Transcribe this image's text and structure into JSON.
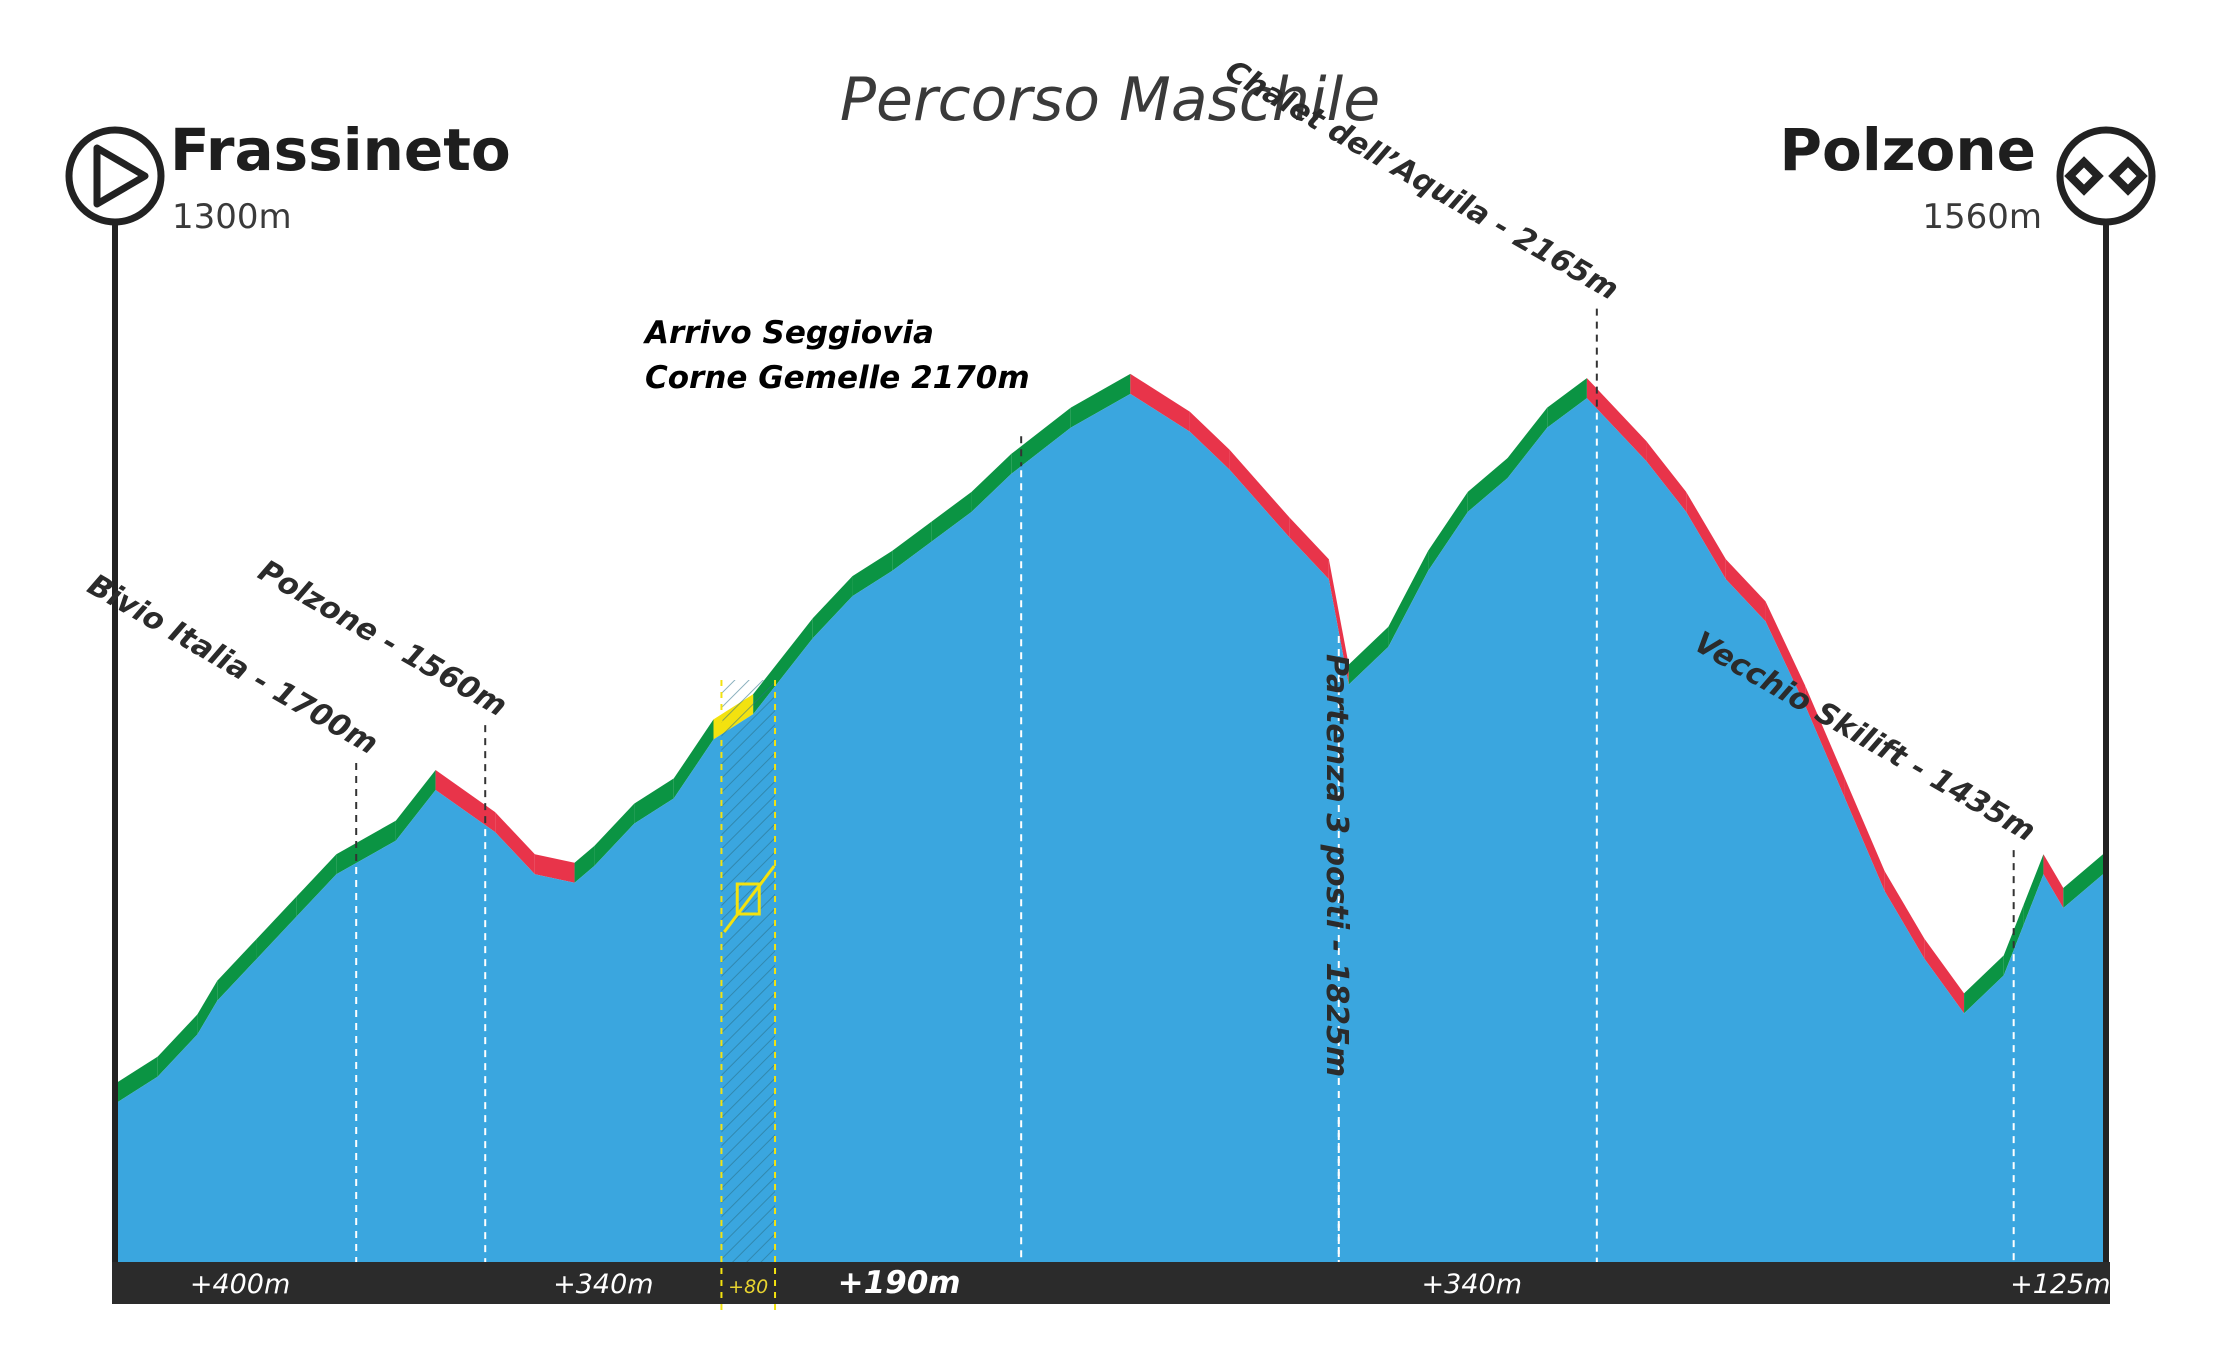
{
  "chart_data": {
    "type": "area",
    "title": "Percorso Maschile",
    "start": {
      "name": "Frassineto",
      "elevation": "1300m"
    },
    "finish": {
      "name": "Polzone",
      "elevation": "1560m"
    },
    "series": [
      {
        "x": [
          0,
          2,
          4,
          5,
          7,
          9,
          11,
          14,
          16,
          19,
          21,
          23,
          24,
          26,
          28,
          30,
          32,
          35,
          37,
          39,
          41,
          43,
          45,
          48,
          51,
          54,
          56,
          59,
          61,
          62,
          64,
          66,
          68,
          70,
          72,
          74,
          77,
          79,
          81,
          83,
          85,
          87,
          89,
          91,
          93,
          95,
          96,
          97,
          98,
          100
        ],
        "y": [
          1330,
          1360,
          1410,
          1450,
          1500,
          1550,
          1600,
          1640,
          1700,
          1650,
          1600,
          1590,
          1610,
          1660,
          1690,
          1760,
          1790,
          1880,
          1930,
          1960,
          1995,
          2030,
          2075,
          2130,
          2170,
          2125,
          2080,
          2000,
          1950,
          1825,
          1870,
          1960,
          2030,
          2070,
          2130,
          2165,
          2090,
          2030,
          1950,
          1900,
          1800,
          1690,
          1580,
          1500,
          1435,
          1480,
          1540,
          1600,
          1560,
          1600
        ]
      }
    ],
    "markers": [
      {
        "x": 12,
        "label": "Bivio Italia - 1700m"
      },
      {
        "x": 18.5,
        "label": "Polzone - 1560m"
      },
      {
        "x": 45.5,
        "label": "Arrivo Seggiovia",
        "label2": "Corne Gemelle 2170m"
      },
      {
        "x": 61.5,
        "label": "Partenza 3 posti - 1825m"
      },
      {
        "x": 74.5,
        "label": "Chalet dell’Aquila - 2165m"
      },
      {
        "x": 95.5,
        "label": "Vecchio Skilift - 1435m"
      }
    ],
    "segments": [
      {
        "label": "+400m",
        "from": 0,
        "to": 12.3
      },
      {
        "label": "+340m",
        "from": 18.5,
        "to": 30.4
      },
      {
        "label": "+80",
        "from": 30.4,
        "to": 33.1
      },
      {
        "label": "+190m",
        "from": 33.1,
        "to": 45.6
      },
      {
        "label": "+340m",
        "from": 61.6,
        "to": 74.8
      },
      {
        "label": "+125m",
        "from": 95.7,
        "to": 100
      }
    ],
    "colors": {
      "fill": "#3aa6df",
      "ascent": "#0b9443",
      "descent": "#e8344a",
      "lift": "#f3e20f",
      "bar": "#2b2b2b",
      "line": "#222222"
    },
    "icons": [
      "start-play-icon",
      "finish-flag-icon",
      "no-bike-icon"
    ]
  }
}
